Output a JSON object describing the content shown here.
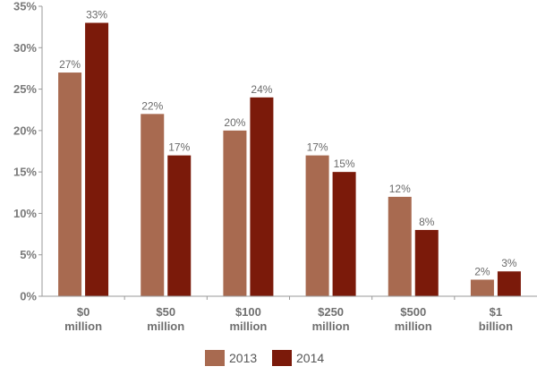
{
  "chart_data": {
    "type": "bar",
    "categories": [
      [
        "$0",
        "million"
      ],
      [
        "$50",
        "million"
      ],
      [
        "$100",
        "million"
      ],
      [
        "$250",
        "million"
      ],
      [
        "$500",
        "million"
      ],
      [
        "$1",
        "billion"
      ]
    ],
    "series": [
      {
        "name": "2013",
        "color": "#a86a50",
        "values": [
          27,
          22,
          20,
          17,
          12,
          2
        ],
        "labels": [
          "27%",
          "22%",
          "20%",
          "17%",
          "12%",
          "2%"
        ]
      },
      {
        "name": "2014",
        "color": "#7b1a0a",
        "values": [
          33,
          17,
          24,
          15,
          8,
          3
        ],
        "labels": [
          "33%",
          "17%",
          "24%",
          "15%",
          "8%",
          "3%"
        ]
      }
    ],
    "y_ticks": [
      0,
      5,
      10,
      15,
      20,
      25,
      30,
      35
    ],
    "y_tick_labels": [
      "0%",
      "5%",
      "10%",
      "15%",
      "20%",
      "25%",
      "30%",
      "35%"
    ],
    "ylim": [
      0,
      35
    ],
    "grid": false,
    "legend_position": "bottom-center"
  }
}
